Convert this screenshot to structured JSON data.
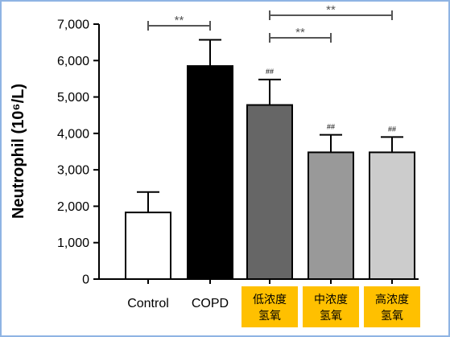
{
  "chart_data": {
    "type": "bar",
    "ylabel": "Neutrophil (10⁶/L)",
    "ylim": [
      0,
      7000
    ],
    "y_ticks": [
      "0",
      "1,000",
      "2,000",
      "3,000",
      "4,000",
      "5,000",
      "6,000",
      "7,000"
    ],
    "y_tick_values": [
      0,
      1000,
      2000,
      3000,
      4000,
      5000,
      6000,
      7000
    ],
    "categories": [
      {
        "lines": [
          "Control"
        ],
        "highlight": false
      },
      {
        "lines": [
          "COPD"
        ],
        "highlight": false
      },
      {
        "lines": [
          "低浓度",
          "氢氧"
        ],
        "highlight": true
      },
      {
        "lines": [
          "中浓度",
          "氢氧"
        ],
        "highlight": true
      },
      {
        "lines": [
          "高浓度",
          "氢氧"
        ],
        "highlight": true
      }
    ],
    "values": [
      1830,
      5850,
      4780,
      3480,
      3480
    ],
    "errors": [
      560,
      720,
      700,
      480,
      420
    ],
    "bar_colors": [
      "#ffffff",
      "#000000",
      "#666666",
      "#999999",
      "#cccccc"
    ],
    "point_labels": [
      "",
      "",
      "##",
      "##",
      "##"
    ],
    "significance": [
      {
        "from": 0,
        "to": 1,
        "label": "**"
      },
      {
        "from": 2,
        "to": 3,
        "label": "**"
      },
      {
        "from": 2,
        "to": 4,
        "label": "**"
      }
    ],
    "highlight_color": "#ffc000",
    "grid": false
  }
}
